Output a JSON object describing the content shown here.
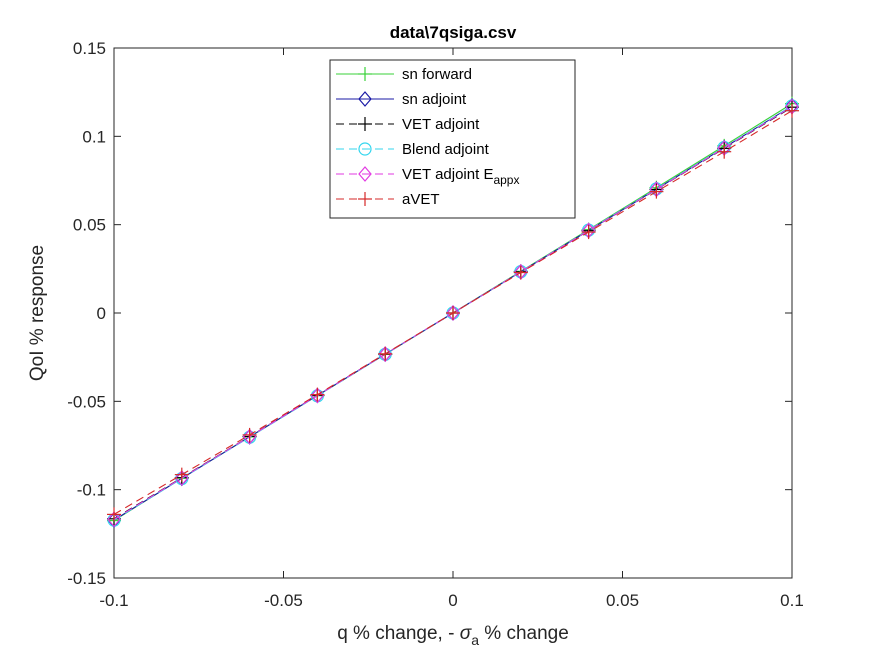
{
  "chart_data": {
    "type": "line",
    "title": "data\\7qsiga.csv",
    "xlabel_prefix": "q % change, - ",
    "xlabel_symbol": "σ",
    "xlabel_sub": "a",
    "xlabel_suffix": " % change",
    "ylabel": "QoI % response",
    "xlim": [
      -0.1,
      0.1
    ],
    "ylim": [
      -0.15,
      0.15
    ],
    "xticks": [
      -0.1,
      -0.05,
      0,
      0.05,
      0.1
    ],
    "xtick_labels": [
      "-0.1",
      "-0.05",
      "0",
      "0.05",
      "0.1"
    ],
    "yticks": [
      -0.15,
      -0.1,
      -0.05,
      0,
      0.05,
      0.1,
      0.15
    ],
    "ytick_labels": [
      "-0.15",
      "-0.1",
      "-0.05",
      "0",
      "0.05",
      "0.1",
      "0.15"
    ],
    "grid": false,
    "legend_position": "top-center",
    "x": [
      -0.1,
      -0.08,
      -0.06,
      -0.04,
      -0.02,
      0,
      0.02,
      0.04,
      0.06,
      0.08,
      0.1
    ],
    "series": [
      {
        "name": "sn forward",
        "color": "#3ad13a",
        "dash": "solid",
        "marker": "plus",
        "values": [
          -0.1175,
          -0.0935,
          -0.0701,
          -0.0468,
          -0.0234,
          0,
          0.0236,
          0.0472,
          0.0709,
          0.0946,
          0.1185
        ]
      },
      {
        "name": "sn adjoint",
        "color": "#1a1aa6",
        "dash": "solid",
        "marker": "diamond",
        "values": [
          -0.1172,
          -0.0936,
          -0.0701,
          -0.0467,
          -0.0233,
          0,
          0.0233,
          0.0467,
          0.0701,
          0.0936,
          0.1172
        ]
      },
      {
        "name": "VET adjoint",
        "color": "#000000",
        "dash": "dash",
        "marker": "plus",
        "values": [
          -0.1165,
          -0.0932,
          -0.0699,
          -0.0466,
          -0.0233,
          0,
          0.0233,
          0.0466,
          0.0699,
          0.0932,
          0.1165
        ]
      },
      {
        "name": "Blend adjoint",
        "color": "#33d6ee",
        "dash": "dash",
        "marker": "circle",
        "values": [
          -0.1172,
          -0.0937,
          -0.0703,
          -0.0469,
          -0.0234,
          0,
          0.0234,
          0.0469,
          0.0703,
          0.0937,
          0.1172
        ]
      },
      {
        "name": "VET adjoint E",
        "name_sub": "appx",
        "color": "#e23ae2",
        "dash": "dash",
        "marker": "diamond",
        "values": [
          -0.1168,
          -0.0934,
          -0.07,
          -0.0467,
          -0.0233,
          0,
          0.0233,
          0.0467,
          0.07,
          0.0934,
          0.1168
        ]
      },
      {
        "name": "aVET",
        "color": "#d62828",
        "dash": "dash",
        "marker": "plus",
        "values": [
          -0.114,
          -0.0915,
          -0.069,
          -0.0462,
          -0.0231,
          0,
          0.0229,
          0.0458,
          0.0687,
          0.0913,
          0.1145
        ]
      }
    ]
  }
}
